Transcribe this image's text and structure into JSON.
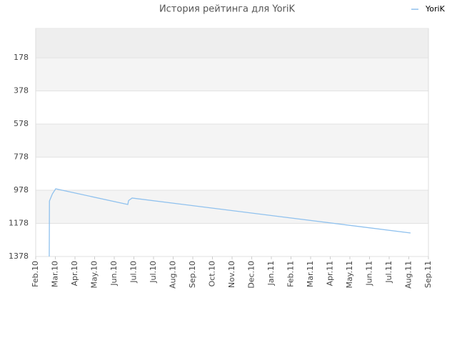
{
  "chart_data": {
    "type": "line",
    "title": "История рейтинга для YoriK",
    "x": [
      0.69,
      0.7,
      0.85,
      1.02,
      4.69,
      4.73,
      4.91,
      19.09
    ],
    "series": [
      {
        "name": "YoriK",
        "color": "#8fc1ee",
        "values": [
          1378,
          1043,
          1000,
          969,
          1064,
          1040,
          1025,
          1236
        ]
      }
    ],
    "ylim": [
      1378,
      1
    ],
    "yticks": [
      178,
      378,
      578,
      778,
      978,
      1178,
      1378
    ],
    "xlim": [
      0,
      20
    ],
    "xticks": [
      {
        "value": 0,
        "label": "Feb.10"
      },
      {
        "value": 1,
        "label": "Mar.10"
      },
      {
        "value": 2,
        "label": "Apr.10"
      },
      {
        "value": 3,
        "label": "May.10"
      },
      {
        "value": 4,
        "label": "Jun.10"
      },
      {
        "value": 5,
        "label": "Jul.10"
      },
      {
        "value": 6,
        "label": "Jul.10"
      },
      {
        "value": 7,
        "label": "Aug.10"
      },
      {
        "value": 8,
        "label": "Sep.10"
      },
      {
        "value": 9,
        "label": "Oct.10"
      },
      {
        "value": 10,
        "label": "Nov.10"
      },
      {
        "value": 11,
        "label": "Dec.10"
      },
      {
        "value": 12,
        "label": "Jan.11"
      },
      {
        "value": 13,
        "label": "Feb.11"
      },
      {
        "value": 14,
        "label": "Mar.11"
      },
      {
        "value": 15,
        "label": "Apr.11"
      },
      {
        "value": 16,
        "label": "May.11"
      },
      {
        "value": 17,
        "label": "Jun.11"
      },
      {
        "value": 18,
        "label": "Jul.11"
      },
      {
        "value": 19,
        "label": "Aug.11"
      },
      {
        "value": 20,
        "label": "Sep.11"
      }
    ],
    "grid": true,
    "legend": "top-right"
  }
}
